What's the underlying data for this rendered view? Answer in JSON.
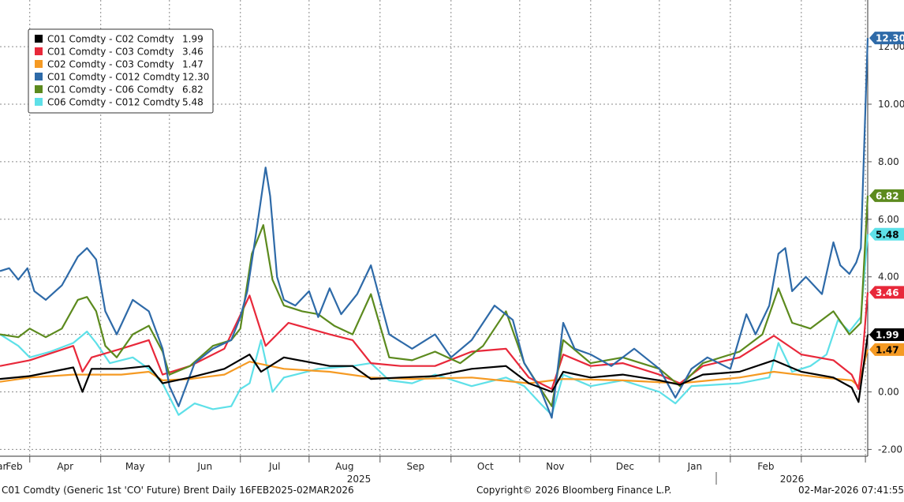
{
  "chart_data": {
    "type": "line",
    "x_ticks": [
      "Feb",
      "Mar",
      "Apr",
      "May",
      "Jun",
      "Jul",
      "Aug",
      "Sep",
      "Oct",
      "Nov",
      "Dec",
      "Jan",
      "Feb"
    ],
    "year_labels": [
      "2025",
      "2026"
    ],
    "y_ticks": [
      "-2.00",
      "0.00",
      "2.00",
      "4.00",
      "6.00",
      "8.00",
      "10.00",
      "12.00"
    ],
    "ylim": [
      -2.0,
      14.0
    ],
    "xlim": [
      "2025-02-16",
      "2026-03-02"
    ],
    "grid": true,
    "legend_position": "top-left",
    "series": [
      {
        "name": "C01 Comdty - C02 Comdty",
        "last": "1.99",
        "color": "#000000",
        "label_text_color": "#ffffff",
        "points": [
          [
            "2025-02-16",
            0.45
          ],
          [
            "2025-03-01",
            0.55
          ],
          [
            "2025-03-20",
            0.85
          ],
          [
            "2025-03-24",
            0.0
          ],
          [
            "2025-03-28",
            0.8
          ],
          [
            "2025-04-10",
            0.8
          ],
          [
            "2025-04-22",
            0.9
          ],
          [
            "2025-04-28",
            0.3
          ],
          [
            "2025-05-10",
            0.5
          ],
          [
            "2025-05-25",
            0.8
          ],
          [
            "2025-06-05",
            1.3
          ],
          [
            "2025-06-10",
            0.7
          ],
          [
            "2025-06-20",
            1.2
          ],
          [
            "2025-07-10",
            0.9
          ],
          [
            "2025-07-20",
            0.9
          ],
          [
            "2025-07-28",
            0.45
          ],
          [
            "2025-08-10",
            0.5
          ],
          [
            "2025-08-25",
            0.55
          ],
          [
            "2025-09-10",
            0.8
          ],
          [
            "2025-09-25",
            0.9
          ],
          [
            "2025-10-05",
            0.3
          ],
          [
            "2025-10-15",
            0.0
          ],
          [
            "2025-10-20",
            0.7
          ],
          [
            "2025-11-01",
            0.5
          ],
          [
            "2025-11-15",
            0.6
          ],
          [
            "2025-12-01",
            0.4
          ],
          [
            "2025-12-10",
            0.25
          ],
          [
            "2025-12-20",
            0.6
          ],
          [
            "2026-01-05",
            0.7
          ],
          [
            "2026-01-20",
            1.1
          ],
          [
            "2026-02-01",
            0.7
          ],
          [
            "2026-02-15",
            0.5
          ],
          [
            "2026-02-23",
            0.15
          ],
          [
            "2026-02-26",
            -0.35
          ],
          [
            "2026-02-28",
            0.8
          ],
          [
            "2026-03-02",
            1.99
          ]
        ]
      },
      {
        "name": "C01 Comdty - C03 Comdty",
        "last": "3.46",
        "color": "#e8283a",
        "label_text_color": "#ffffff",
        "points": [
          [
            "2025-02-16",
            0.9
          ],
          [
            "2025-03-01",
            1.1
          ],
          [
            "2025-03-20",
            1.6
          ],
          [
            "2025-03-24",
            0.7
          ],
          [
            "2025-03-28",
            1.2
          ],
          [
            "2025-04-10",
            1.5
          ],
          [
            "2025-04-22",
            1.8
          ],
          [
            "2025-04-28",
            0.6
          ],
          [
            "2025-05-10",
            0.9
          ],
          [
            "2025-05-25",
            1.5
          ],
          [
            "2025-06-05",
            3.35
          ],
          [
            "2025-06-12",
            1.6
          ],
          [
            "2025-06-22",
            2.4
          ],
          [
            "2025-07-10",
            2.0
          ],
          [
            "2025-07-20",
            1.8
          ],
          [
            "2025-07-28",
            1.0
          ],
          [
            "2025-08-10",
            0.9
          ],
          [
            "2025-08-25",
            0.9
          ],
          [
            "2025-09-10",
            1.4
          ],
          [
            "2025-09-25",
            1.5
          ],
          [
            "2025-10-05",
            0.5
          ],
          [
            "2025-10-15",
            0.1
          ],
          [
            "2025-10-20",
            1.3
          ],
          [
            "2025-11-01",
            0.9
          ],
          [
            "2025-11-15",
            1.0
          ],
          [
            "2025-12-01",
            0.6
          ],
          [
            "2025-12-10",
            0.3
          ],
          [
            "2025-12-20",
            0.9
          ],
          [
            "2026-01-05",
            1.2
          ],
          [
            "2026-01-20",
            1.95
          ],
          [
            "2026-02-01",
            1.3
          ],
          [
            "2026-02-15",
            1.1
          ],
          [
            "2026-02-23",
            0.6
          ],
          [
            "2026-02-26",
            0.1
          ],
          [
            "2026-02-28",
            1.5
          ],
          [
            "2026-03-02",
            3.46
          ]
        ]
      },
      {
        "name": "C02 Comdty - C03 Comdty",
        "last": "1.47",
        "color": "#f59a23",
        "label_text_color": "#000000",
        "points": [
          [
            "2025-02-16",
            0.35
          ],
          [
            "2025-03-01",
            0.5
          ],
          [
            "2025-03-20",
            0.6
          ],
          [
            "2025-04-10",
            0.6
          ],
          [
            "2025-04-22",
            0.7
          ],
          [
            "2025-04-28",
            0.4
          ],
          [
            "2025-05-10",
            0.45
          ],
          [
            "2025-05-25",
            0.6
          ],
          [
            "2025-06-05",
            1.05
          ],
          [
            "2025-06-20",
            0.8
          ],
          [
            "2025-07-10",
            0.7
          ],
          [
            "2025-07-28",
            0.5
          ],
          [
            "2025-08-15",
            0.45
          ],
          [
            "2025-09-10",
            0.5
          ],
          [
            "2025-10-05",
            0.3
          ],
          [
            "2025-10-20",
            0.45
          ],
          [
            "2025-11-15",
            0.4
          ],
          [
            "2025-12-10",
            0.3
          ],
          [
            "2026-01-05",
            0.5
          ],
          [
            "2026-01-20",
            0.7
          ],
          [
            "2026-02-10",
            0.5
          ],
          [
            "2026-02-23",
            0.4
          ],
          [
            "2026-02-26",
            0.2
          ],
          [
            "2026-03-02",
            1.47
          ]
        ]
      },
      {
        "name": "C01 Comdty - C012 Comdty",
        "last": "12.30",
        "color": "#2e6aa8",
        "label_text_color": "#ffffff",
        "points": [
          [
            "2025-02-16",
            4.2
          ],
          [
            "2025-02-20",
            4.3
          ],
          [
            "2025-02-24",
            3.9
          ],
          [
            "2025-02-28",
            4.3
          ],
          [
            "2025-03-03",
            3.5
          ],
          [
            "2025-03-08",
            3.2
          ],
          [
            "2025-03-15",
            3.7
          ],
          [
            "2025-03-22",
            4.7
          ],
          [
            "2025-03-26",
            5.0
          ],
          [
            "2025-03-30",
            4.6
          ],
          [
            "2025-04-03",
            2.8
          ],
          [
            "2025-04-08",
            2.0
          ],
          [
            "2025-04-15",
            3.2
          ],
          [
            "2025-04-22",
            2.8
          ],
          [
            "2025-04-28",
            1.5
          ],
          [
            "2025-05-01",
            0.2
          ],
          [
            "2025-05-05",
            -0.5
          ],
          [
            "2025-05-12",
            1.0
          ],
          [
            "2025-05-20",
            1.5
          ],
          [
            "2025-05-28",
            1.8
          ],
          [
            "2025-06-01",
            2.6
          ],
          [
            "2025-06-04",
            3.5
          ],
          [
            "2025-06-08",
            5.6
          ],
          [
            "2025-06-12",
            7.8
          ],
          [
            "2025-06-14",
            6.8
          ],
          [
            "2025-06-17",
            4.0
          ],
          [
            "2025-06-20",
            3.2
          ],
          [
            "2025-06-25",
            3.0
          ],
          [
            "2025-07-01",
            3.5
          ],
          [
            "2025-07-05",
            2.6
          ],
          [
            "2025-07-10",
            3.6
          ],
          [
            "2025-07-15",
            2.7
          ],
          [
            "2025-07-22",
            3.4
          ],
          [
            "2025-07-28",
            4.4
          ],
          [
            "2025-08-05",
            2.0
          ],
          [
            "2025-08-15",
            1.5
          ],
          [
            "2025-08-25",
            2.0
          ],
          [
            "2025-09-01",
            1.2
          ],
          [
            "2025-09-10",
            1.8
          ],
          [
            "2025-09-20",
            3.0
          ],
          [
            "2025-09-28",
            2.5
          ],
          [
            "2025-10-03",
            1.0
          ],
          [
            "2025-10-10",
            0.1
          ],
          [
            "2025-10-15",
            -0.9
          ],
          [
            "2025-10-20",
            2.4
          ],
          [
            "2025-10-25",
            1.5
          ],
          [
            "2025-11-01",
            1.3
          ],
          [
            "2025-11-10",
            0.9
          ],
          [
            "2025-11-20",
            1.5
          ],
          [
            "2025-12-01",
            0.8
          ],
          [
            "2025-12-08",
            -0.2
          ],
          [
            "2025-12-15",
            0.8
          ],
          [
            "2025-12-22",
            1.2
          ],
          [
            "2026-01-01",
            0.8
          ],
          [
            "2026-01-08",
            2.7
          ],
          [
            "2026-01-12",
            2.0
          ],
          [
            "2026-01-18",
            3.0
          ],
          [
            "2026-01-22",
            4.8
          ],
          [
            "2026-01-25",
            5.0
          ],
          [
            "2026-01-28",
            3.5
          ],
          [
            "2026-02-03",
            4.0
          ],
          [
            "2026-02-10",
            3.4
          ],
          [
            "2026-02-15",
            5.2
          ],
          [
            "2026-02-18",
            4.4
          ],
          [
            "2026-02-22",
            4.1
          ],
          [
            "2026-02-25",
            4.5
          ],
          [
            "2026-02-27",
            5.0
          ],
          [
            "2026-03-02",
            12.3
          ]
        ]
      },
      {
        "name": "C01 Comdty - C06 Comdty",
        "last": "6.82",
        "color": "#5c8a1e",
        "label_text_color": "#ffffff",
        "points": [
          [
            "2025-02-16",
            2.0
          ],
          [
            "2025-02-24",
            1.9
          ],
          [
            "2025-03-01",
            2.2
          ],
          [
            "2025-03-08",
            1.9
          ],
          [
            "2025-03-15",
            2.2
          ],
          [
            "2025-03-22",
            3.2
          ],
          [
            "2025-03-26",
            3.3
          ],
          [
            "2025-03-30",
            2.8
          ],
          [
            "2025-04-03",
            1.6
          ],
          [
            "2025-04-08",
            1.2
          ],
          [
            "2025-04-15",
            2.0
          ],
          [
            "2025-04-22",
            2.3
          ],
          [
            "2025-04-28",
            1.4
          ],
          [
            "2025-05-01",
            0.6
          ],
          [
            "2025-05-10",
            0.9
          ],
          [
            "2025-05-20",
            1.6
          ],
          [
            "2025-05-28",
            1.8
          ],
          [
            "2025-06-01",
            2.2
          ],
          [
            "2025-06-06",
            4.8
          ],
          [
            "2025-06-11",
            5.8
          ],
          [
            "2025-06-15",
            3.9
          ],
          [
            "2025-06-20",
            3.0
          ],
          [
            "2025-06-28",
            2.8
          ],
          [
            "2025-07-05",
            2.7
          ],
          [
            "2025-07-12",
            2.3
          ],
          [
            "2025-07-20",
            2.0
          ],
          [
            "2025-07-28",
            3.4
          ],
          [
            "2025-08-05",
            1.2
          ],
          [
            "2025-08-15",
            1.1
          ],
          [
            "2025-08-25",
            1.4
          ],
          [
            "2025-09-05",
            1.0
          ],
          [
            "2025-09-15",
            1.6
          ],
          [
            "2025-09-25",
            2.8
          ],
          [
            "2025-10-03",
            1.0
          ],
          [
            "2025-10-15",
            -0.5
          ],
          [
            "2025-10-20",
            1.8
          ],
          [
            "2025-11-01",
            1.0
          ],
          [
            "2025-11-15",
            1.2
          ],
          [
            "2025-12-01",
            0.8
          ],
          [
            "2025-12-10",
            0.2
          ],
          [
            "2025-12-20",
            1.0
          ],
          [
            "2026-01-05",
            1.4
          ],
          [
            "2026-01-15",
            2.0
          ],
          [
            "2026-01-22",
            3.6
          ],
          [
            "2026-01-28",
            2.4
          ],
          [
            "2026-02-05",
            2.2
          ],
          [
            "2026-02-15",
            2.8
          ],
          [
            "2026-02-22",
            2.0
          ],
          [
            "2026-02-27",
            2.4
          ],
          [
            "2026-03-02",
            6.82
          ]
        ]
      },
      {
        "name": "C06 Comdty - C012 Comdty",
        "last": "5.48",
        "color": "#5ee0e8",
        "label_text_color": "#000000",
        "points": [
          [
            "2025-02-16",
            2.0
          ],
          [
            "2025-02-24",
            1.6
          ],
          [
            "2025-03-01",
            1.2
          ],
          [
            "2025-03-10",
            1.4
          ],
          [
            "2025-03-20",
            1.7
          ],
          [
            "2025-03-26",
            2.1
          ],
          [
            "2025-03-30",
            1.7
          ],
          [
            "2025-04-05",
            1.0
          ],
          [
            "2025-04-15",
            1.2
          ],
          [
            "2025-04-22",
            0.8
          ],
          [
            "2025-04-28",
            0.3
          ],
          [
            "2025-05-05",
            -0.8
          ],
          [
            "2025-05-12",
            -0.4
          ],
          [
            "2025-05-20",
            -0.6
          ],
          [
            "2025-05-28",
            -0.5
          ],
          [
            "2025-06-01",
            0.1
          ],
          [
            "2025-06-05",
            0.3
          ],
          [
            "2025-06-10",
            1.8
          ],
          [
            "2025-06-15",
            0.0
          ],
          [
            "2025-06-20",
            0.5
          ],
          [
            "2025-07-05",
            0.8
          ],
          [
            "2025-07-20",
            0.9
          ],
          [
            "2025-07-28",
            1.0
          ],
          [
            "2025-08-05",
            0.4
          ],
          [
            "2025-08-15",
            0.3
          ],
          [
            "2025-08-25",
            0.6
          ],
          [
            "2025-09-10",
            0.2
          ],
          [
            "2025-09-25",
            0.5
          ],
          [
            "2025-10-03",
            0.2
          ],
          [
            "2025-10-10",
            -0.4
          ],
          [
            "2025-10-15",
            -0.8
          ],
          [
            "2025-10-20",
            0.6
          ],
          [
            "2025-11-01",
            0.2
          ],
          [
            "2025-11-15",
            0.4
          ],
          [
            "2025-12-01",
            0.0
          ],
          [
            "2025-12-08",
            -0.4
          ],
          [
            "2025-12-15",
            0.2
          ],
          [
            "2026-01-05",
            0.3
          ],
          [
            "2026-01-18",
            0.5
          ],
          [
            "2026-01-22",
            1.7
          ],
          [
            "2026-01-28",
            0.7
          ],
          [
            "2026-02-05",
            0.9
          ],
          [
            "2026-02-12",
            1.3
          ],
          [
            "2026-02-17",
            2.5
          ],
          [
            "2026-02-22",
            2.1
          ],
          [
            "2026-02-27",
            2.6
          ],
          [
            "2026-03-02",
            5.48
          ]
        ]
      }
    ]
  },
  "footer": {
    "left": "C01 Comdty (Generic 1st 'CO' Future) Brent Daily 16FEB2025-02MAR2026",
    "center": "Copyright© 2026 Bloomberg Finance L.P.",
    "right": "02-Mar-2026 07:41:55"
  }
}
